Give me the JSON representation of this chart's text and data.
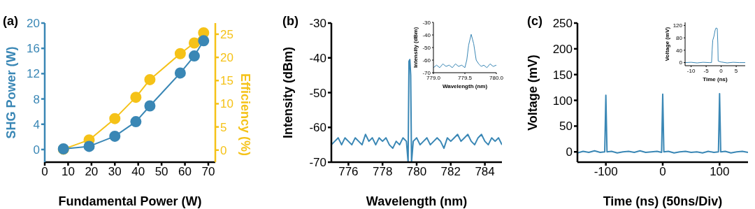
{
  "chart_data": [
    {
      "type": "line",
      "title": "(a)",
      "xlabel": "Fundamental Power (W)",
      "ylabel": "SHG Power (W)",
      "y2label": "Efficiency (%)",
      "xlim": [
        0,
        73
      ],
      "xticks": [
        0,
        10,
        20,
        30,
        40,
        50,
        60,
        70
      ],
      "ylim": [
        -2,
        20
      ],
      "yticks": [
        0,
        4,
        8,
        12,
        16,
        20
      ],
      "y2lim": [
        -2.6,
        27.4
      ],
      "y2ticks": [
        0,
        5,
        10,
        15,
        20,
        25
      ],
      "marker": "circle",
      "series": [
        {
          "color": "#3a87b5",
          "x": [
            8,
            19,
            30,
            39,
            45,
            58,
            64,
            68
          ],
          "values": [
            0.1,
            0.5,
            2.1,
            4.4,
            6.9,
            12.1,
            14.8,
            17.2
          ]
        },
        {
          "color": "#f5c218",
          "axis": "y2",
          "x": [
            8,
            19,
            30,
            39,
            45,
            58,
            64,
            68
          ],
          "values": [
            0.2,
            2.2,
            6.8,
            11.4,
            15.2,
            20.8,
            23.1,
            25.3
          ]
        }
      ]
    },
    {
      "type": "line",
      "title": "(b)",
      "xlabel": "Wavelength (nm)",
      "ylabel": "Intensity (dBm)",
      "xlim": [
        775,
        785
      ],
      "xticks": [
        776,
        778,
        780,
        782,
        784
      ],
      "ylim": [
        -70,
        -30
      ],
      "yticks": [
        -70,
        -60,
        -50,
        -40,
        -30
      ],
      "series": [
        {
          "color": "#3a87b5",
          "x": [
            775,
            775.2,
            775.4,
            775.6,
            775.8,
            776,
            776.2,
            776.4,
            776.6,
            776.8,
            777,
            777.2,
            777.4,
            777.6,
            777.8,
            778,
            778.2,
            778.4,
            778.6,
            778.8,
            779,
            779.2,
            779.4,
            779.5,
            779.55,
            779.6,
            779.65,
            779.7,
            779.8,
            780,
            780.2,
            780.4,
            780.6,
            780.8,
            781,
            781.2,
            781.4,
            781.6,
            781.8,
            782,
            782.2,
            782.4,
            782.6,
            782.8,
            783,
            783.2,
            783.4,
            783.6,
            783.8,
            784,
            784.2,
            784.4,
            784.6,
            784.8,
            785
          ],
          "values": [
            -65,
            -64,
            -63,
            -65,
            -63,
            -64,
            -65,
            -63,
            -64,
            -65,
            -62,
            -64,
            -63,
            -65,
            -63,
            -64,
            -63,
            -65,
            -66,
            -64,
            -65,
            -63,
            -64,
            -70,
            -41,
            -40.5,
            -45,
            -70,
            -64,
            -63,
            -65,
            -64,
            -63,
            -65,
            -64,
            -63,
            -64,
            -66,
            -63,
            -64,
            -63,
            -62,
            -64,
            -63,
            -62,
            -64,
            -65,
            -63,
            -62,
            -64,
            -65,
            -63,
            -64,
            -63,
            -65
          ]
        }
      ]
    },
    {
      "type": "line",
      "xlabel": "Wavelength (nm)",
      "ylabel": "Intensity (dBm)",
      "xlim": [
        779,
        780
      ],
      "xticks": [
        {
          "value": 779,
          "label": "779.0"
        },
        {
          "value": 779.5,
          "label": "779.5"
        },
        {
          "value": 780,
          "label": "780.0"
        }
      ],
      "ylim": [
        -70,
        -30
      ],
      "yticks": [
        -70,
        -60,
        -50,
        -40,
        -30
      ],
      "series": [
        {
          "color": "#3a87b5",
          "x": [
            779,
            779.05,
            779.1,
            779.15,
            779.2,
            779.25,
            779.3,
            779.35,
            779.4,
            779.45,
            779.5,
            779.53,
            779.56,
            779.6,
            779.64,
            779.68,
            779.72,
            779.76,
            779.8,
            779.85,
            779.9,
            779.95,
            780
          ],
          "values": [
            -66,
            -64,
            -66,
            -63,
            -65,
            -64,
            -66,
            -63,
            -65,
            -64,
            -66,
            -60,
            -48,
            -39.5,
            -47,
            -60,
            -63,
            -65,
            -64,
            -66,
            -63,
            -65,
            -64
          ]
        }
      ]
    },
    {
      "type": "line",
      "title": "(c)",
      "xlabel": "Time (ns) (50ns/Div)",
      "ylabel": "Voltage (mV)",
      "xlim": [
        -150,
        150
      ],
      "xticks": [
        -100,
        0,
        100
      ],
      "ylim": [
        -20,
        250
      ],
      "yticks": [
        0,
        50,
        100,
        150,
        200,
        250
      ],
      "series": [
        {
          "color": "#3a87b5",
          "x": [
            -150,
            -140,
            -130,
            -120,
            -110,
            -102,
            -100,
            -98,
            -90,
            -80,
            -70,
            -60,
            -50,
            -40,
            -30,
            -20,
            -10,
            -2,
            0,
            2,
            10,
            20,
            30,
            40,
            50,
            60,
            70,
            80,
            90,
            98,
            100,
            102,
            110,
            120,
            130,
            140,
            150
          ],
          "values": [
            -2,
            1,
            -1,
            2,
            -1,
            0,
            110,
            0,
            1,
            -2,
            0,
            1,
            -1,
            2,
            -1,
            0,
            1,
            -1,
            112,
            0,
            1,
            -2,
            0,
            1,
            -1,
            0,
            -2,
            1,
            -1,
            0,
            113,
            0,
            1,
            -2,
            0,
            1,
            -1
          ]
        }
      ]
    },
    {
      "type": "line",
      "xlabel": "Time (ns)",
      "ylabel": "Voltage (mV)",
      "xlim": [
        -12,
        8
      ],
      "xticks": [
        -10,
        -5,
        0,
        5
      ],
      "ylim": [
        -10,
        130
      ],
      "yticks": [
        0,
        40,
        80,
        120
      ],
      "series": [
        {
          "color": "#3a87b5",
          "x": [
            -12,
            -10,
            -8,
            -6,
            -4,
            -3.2,
            -3,
            -2.8,
            -2.4,
            -2,
            -1.7,
            -1.3,
            -1.1,
            -1,
            0,
            2,
            4,
            6,
            8
          ],
          "values": [
            0,
            1,
            -1,
            1,
            0,
            0,
            40,
            72,
            85,
            105,
            112,
            110,
            60,
            5,
            2,
            -1,
            1,
            0,
            0
          ]
        }
      ]
    }
  ]
}
